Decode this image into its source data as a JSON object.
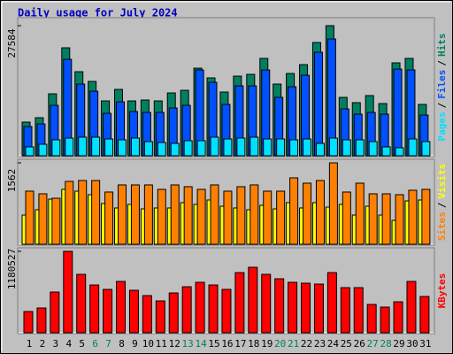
{
  "title": "Daily usage for July 2024",
  "legend_separator": "/",
  "chart_data": [
    {
      "type": "bar",
      "ylim": [
        0,
        27584
      ],
      "yticks": [
        27584
      ],
      "series": [
        {
          "name": "Hits",
          "color": "#008060",
          "values": [
            7130,
            8070,
            13130,
            22890,
            17820,
            15760,
            11630,
            14070,
            11630,
            11820,
            11630,
            13320,
            13880,
            18570,
            16510,
            13510,
            16880,
            17260,
            20640,
            15200,
            17450,
            19320,
            24010,
            27584,
            12380,
            11260,
            12760,
            11070,
            19700,
            20640,
            10880
          ]
        },
        {
          "name": "Files",
          "color": "#0050ff",
          "values": [
            6190,
            6750,
            10690,
            20450,
            15200,
            13690,
            9000,
            11440,
            9380,
            9190,
            9190,
            10130,
            10690,
            18200,
            15570,
            10880,
            14820,
            14820,
            18200,
            12380,
            14630,
            17070,
            21950,
            24760,
            9940,
            8820,
            9190,
            8820,
            18380,
            18200,
            8630
          ]
        },
        {
          "name": "Pages",
          "color": "#00e0ff",
          "values": [
            1880,
            2440,
            3380,
            3750,
            3940,
            3940,
            3560,
            3380,
            3750,
            3000,
            2810,
            2630,
            3190,
            3190,
            3940,
            3560,
            3750,
            3940,
            3560,
            3560,
            3380,
            3560,
            2630,
            3750,
            3380,
            3380,
            3000,
            1880,
            1690,
            3560,
            3000
          ]
        }
      ]
    },
    {
      "type": "bar",
      "ylim": [
        0,
        1562
      ],
      "yticks": [
        1562
      ],
      "series": [
        {
          "name": "Visits",
          "color": "#ffff00",
          "values": [
            560,
            662,
            866,
            1053,
            1019,
            951,
            781,
            696,
            764,
            679,
            696,
            696,
            798,
            764,
            849,
            730,
            696,
            662,
            747,
            679,
            798,
            696,
            798,
            713,
            764,
            560,
            730,
            560,
            458,
            832,
            849
          ]
        },
        {
          "name": "Sites",
          "color": "#ff8000",
          "values": [
            1019,
            968,
            883,
            1206,
            1223,
            1223,
            1002,
            1138,
            1138,
            1138,
            1053,
            1138,
            1104,
            1053,
            1138,
            1019,
            1104,
            1138,
            1019,
            1019,
            1274,
            1172,
            1223,
            1562,
            1002,
            1172,
            968,
            968,
            951,
            1036,
            1053
          ]
        }
      ]
    },
    {
      "type": "bar",
      "ylim": [
        0,
        1180527
      ],
      "yticks": [
        1180527
      ],
      "categories": [
        "1",
        "2",
        "3",
        "4",
        "5",
        "6",
        "7",
        "8",
        "9",
        "10",
        "11",
        "12",
        "13",
        "14",
        "15",
        "16",
        "17",
        "18",
        "19",
        "20",
        "21",
        "22",
        "23",
        "24",
        "25",
        "26",
        "27",
        "28",
        "29",
        "30",
        "31"
      ],
      "category_colors": [
        "#000000",
        "#000000",
        "#000000",
        "#000000",
        "#000000",
        "#008060",
        "#008060",
        "#000000",
        "#000000",
        "#000000",
        "#000000",
        "#000000",
        "#008060",
        "#008060",
        "#000000",
        "#000000",
        "#000000",
        "#000000",
        "#000000",
        "#008060",
        "#008060",
        "#000000",
        "#000000",
        "#000000",
        "#000000",
        "#000000",
        "#008060",
        "#008060",
        "#000000",
        "#000000",
        "#000000"
      ],
      "series": [
        {
          "name": "KBytes",
          "color": "#ff0000",
          "values": [
            307970,
            359300,
            590270,
            1180527,
            846910,
            692930,
            628770,
            744260,
            615940,
            538940,
            461950,
            577440,
            667260,
            731420,
            692930,
            628770,
            872580,
            949570,
            846910,
            782750,
            731420,
            718590,
            705760,
            872580,
            654430,
            654430,
            410620,
            372130,
            449120,
            744260,
            526110
          ]
        }
      ]
    }
  ]
}
